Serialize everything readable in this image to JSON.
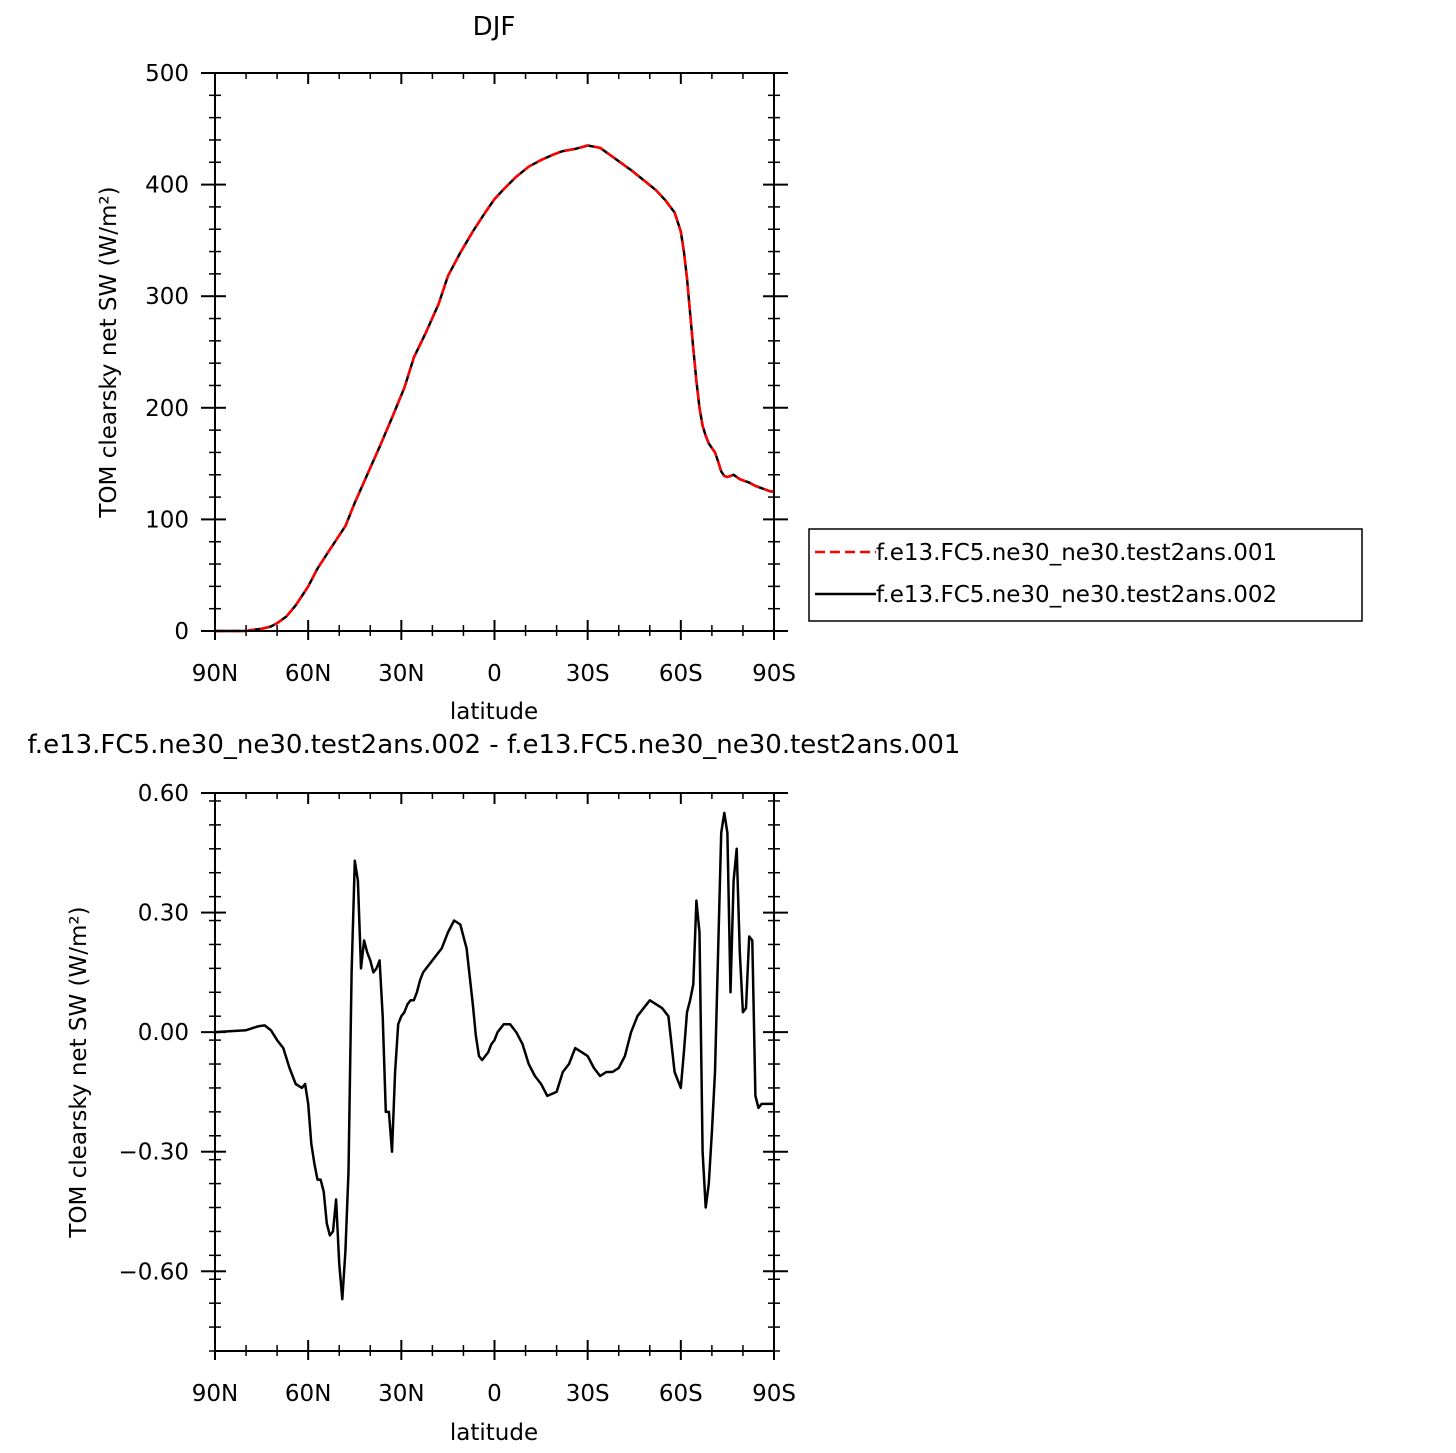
{
  "chart_data": [
    {
      "type": "line",
      "title": "DJF",
      "xlabel": "latitude",
      "ylabel": "TOM clearsky net SW (W/m²)",
      "xlim": [
        90,
        -90
      ],
      "ylim": [
        0,
        500
      ],
      "x_tick_values": [
        90,
        60,
        30,
        0,
        -30,
        -60,
        -90
      ],
      "x_tick_labels": [
        "90N",
        "60N",
        "30N",
        "0",
        "30S",
        "60S",
        "90S"
      ],
      "y_tick_values": [
        0,
        100,
        200,
        300,
        400,
        500
      ],
      "y_tick_labels": [
        "0",
        "100",
        "200",
        "300",
        "400",
        "500"
      ],
      "x": [
        90,
        85,
        82,
        80,
        78,
        75,
        72,
        70,
        67,
        64,
        60,
        57,
        53,
        48,
        45,
        41,
        37,
        33,
        29,
        26,
        22,
        18,
        15,
        11,
        7,
        3,
        0,
        -3,
        -7,
        -11,
        -15,
        -19,
        -22,
        -26,
        -30,
        -34,
        -37,
        -40,
        -44,
        -48,
        -52,
        -55,
        -58,
        -60,
        -61,
        -62,
        -63,
        -64,
        -65,
        -66,
        -67,
        -68,
        -69,
        -70,
        -71,
        -72,
        -73,
        -74,
        -75,
        -76,
        -77,
        -78,
        -79,
        -80,
        -82,
        -84,
        -86,
        -88,
        -89,
        -90
      ],
      "series": [
        {
          "name": "f.e13.FC5.ne30_ne30.test2ans.001",
          "color": "#ff0000",
          "dash": "dashed",
          "values": [
            0,
            0,
            0,
            0,
            1,
            2,
            4,
            7,
            13,
            23,
            40,
            56,
            73,
            94,
            115,
            140,
            165,
            191,
            218,
            245,
            268,
            293,
            318,
            339,
            358,
            375,
            387,
            396,
            407,
            416,
            422,
            427,
            430,
            432,
            435,
            433,
            427,
            421,
            413,
            404,
            395,
            386,
            375,
            358,
            340,
            316,
            285,
            253,
            224,
            200,
            184,
            175,
            168,
            164,
            160,
            152,
            143,
            139,
            138,
            139,
            140,
            138,
            136,
            135,
            133,
            130,
            128,
            126,
            125,
            125
          ]
        },
        {
          "name": "f.e13.FC5.ne30_ne30.test2ans.002",
          "color": "#000000",
          "dash": "solid",
          "values": [
            0,
            0,
            0,
            0,
            1,
            2,
            4,
            7,
            13,
            23,
            40,
            56,
            73,
            94,
            115,
            140,
            165,
            191,
            218,
            245,
            268,
            293,
            318,
            339,
            358,
            375,
            387,
            396,
            407,
            416,
            422,
            427,
            430,
            432,
            435,
            433,
            427,
            421,
            413,
            404,
            395,
            386,
            375,
            358,
            340,
            316,
            285,
            253,
            224,
            200,
            184,
            175,
            168,
            164,
            160,
            152,
            143,
            139,
            138,
            139,
            140,
            138,
            136,
            135,
            133,
            130,
            128,
            126,
            125,
            125
          ]
        }
      ]
    },
    {
      "type": "line",
      "title": "f.e13.FC5.ne30_ne30.test2ans.002 - f.e13.FC5.ne30_ne30.test2ans.001",
      "xlabel": "latitude",
      "ylabel": "TOM clearsky net SW (W/m²)",
      "xlim": [
        90,
        -90
      ],
      "ylim": [
        -0.8,
        0.6
      ],
      "x_tick_values": [
        90,
        60,
        30,
        0,
        -30,
        -60,
        -90
      ],
      "x_tick_labels": [
        "90N",
        "60N",
        "30N",
        "0",
        "30S",
        "60S",
        "90S"
      ],
      "y_tick_values": [
        0.6,
        0.3,
        0,
        -0.3,
        -0.6
      ],
      "y_tick_labels": [
        "0.60",
        "0.30",
        "0.00",
        "−0.30",
        "−0.60"
      ],
      "x": [
        90,
        80,
        76,
        74,
        72,
        70,
        68,
        66,
        64,
        62,
        61,
        60,
        59,
        58,
        57,
        56,
        55,
        54,
        53,
        52,
        51,
        50,
        49,
        48,
        47,
        46,
        45,
        44,
        43,
        42,
        41,
        40,
        39,
        38,
        37,
        36,
        35,
        34,
        33,
        32,
        31,
        30,
        29,
        28,
        27,
        26,
        25,
        24,
        23,
        22,
        21,
        19,
        17,
        15,
        13,
        11,
        9,
        8,
        7,
        6,
        5,
        4,
        3,
        2,
        1,
        0,
        -1,
        -3,
        -5,
        -7,
        -9,
        -11,
        -13,
        -15,
        -17,
        -20,
        -22,
        -24,
        -26,
        -28,
        -30,
        -32,
        -34,
        -36,
        -38,
        -40,
        -42,
        -44,
        -46,
        -48,
        -50,
        -52,
        -54,
        -56,
        -58,
        -60,
        -61,
        -62,
        -63,
        -64,
        -65,
        -66,
        -67,
        -68,
        -69,
        -70,
        -71,
        -72,
        -73,
        -74,
        -75,
        -76,
        -77,
        -78,
        -79,
        -80,
        -81,
        -82,
        -83,
        -84,
        -85,
        -86,
        -87,
        -88,
        -89,
        -90
      ],
      "series": [
        {
          "name": "",
          "color": "#000000",
          "dash": "solid",
          "values": [
            0,
            0.005,
            0.015,
            0.017,
            0.005,
            -0.02,
            -0.04,
            -0.09,
            -0.13,
            -0.14,
            -0.13,
            -0.18,
            -0.28,
            -0.33,
            -0.37,
            -0.37,
            -0.4,
            -0.48,
            -0.51,
            -0.5,
            -0.42,
            -0.58,
            -0.67,
            -0.55,
            -0.35,
            0.15,
            0.43,
            0.38,
            0.16,
            0.23,
            0.2,
            0.18,
            0.15,
            0.16,
            0.18,
            0.04,
            -0.2,
            -0.2,
            -0.3,
            -0.1,
            0.02,
            0.04,
            0.05,
            0.07,
            0.08,
            0.08,
            0.1,
            0.13,
            0.15,
            0.16,
            0.17,
            0.19,
            0.21,
            0.25,
            0.28,
            0.27,
            0.21,
            0.14,
            0.07,
            -0.01,
            -0.06,
            -0.07,
            -0.06,
            -0.05,
            -0.03,
            -0.02,
            0,
            0.02,
            0.02,
            0,
            -0.03,
            -0.08,
            -0.11,
            -0.13,
            -0.16,
            -0.15,
            -0.1,
            -0.08,
            -0.04,
            -0.05,
            -0.06,
            -0.09,
            -0.11,
            -0.1,
            -0.1,
            -0.09,
            -0.06,
            0,
            0.04,
            0.06,
            0.08,
            0.07,
            0.06,
            0.04,
            -0.1,
            -0.14,
            -0.05,
            0.05,
            0.08,
            0.12,
            0.33,
            0.25,
            -0.3,
            -0.44,
            -0.38,
            -0.25,
            -0.1,
            0.2,
            0.5,
            0.55,
            0.5,
            0.1,
            0.38,
            0.46,
            0.2,
            0.05,
            0.06,
            0.24,
            0.23,
            -0.16,
            -0.19,
            -0.18,
            -0.18,
            -0.18,
            -0.18,
            -0.18
          ]
        }
      ]
    }
  ]
}
